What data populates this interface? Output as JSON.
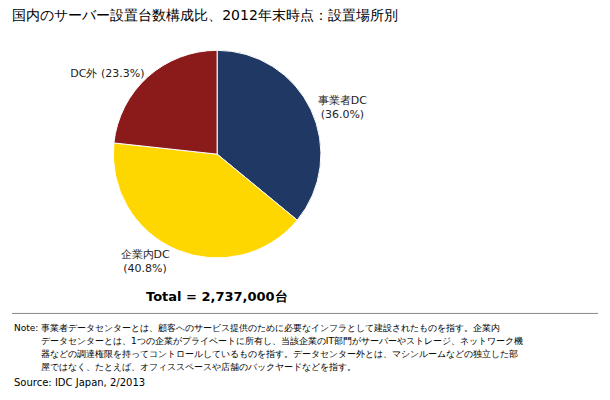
{
  "chart_data": {
    "type": "pie",
    "title": "国内のサーバー設置台数構成比、2012年末時点：設置場所別",
    "categories": [
      "事業者DC",
      "企業内DC",
      "DC外"
    ],
    "values": [
      36.0,
      40.8,
      23.3
    ],
    "value_labels": [
      "事業者DC\n(36.0%)",
      "企業内DC\n(40.8%)",
      "DC外 (23.3%)"
    ],
    "colors": [
      "#1F3864",
      "#FFD700",
      "#8B1A1A"
    ],
    "annotations": [
      "Total = 2,737,000台"
    ],
    "notes": [
      "Note: 事業者データセンターとは、顧客へのサービス提供のために必要なインフラとして建設されたものを指す。企業内",
      "　　　データセンターとは、1つの企業がプライベートに所有し、当該企業のIT部門がサーバーやストレージ、ネットワーク機",
      "　　　器などの調達権限を持ってコントロールしているものを指す。データセンター外とは、マシンルームなどの独立した部",
      "　　　屋ではなく、たとえば、オフィススペースや店舗のバックヤードなどを指す。"
    ],
    "source": "Source: IDC Japan, 2/2013"
  }
}
